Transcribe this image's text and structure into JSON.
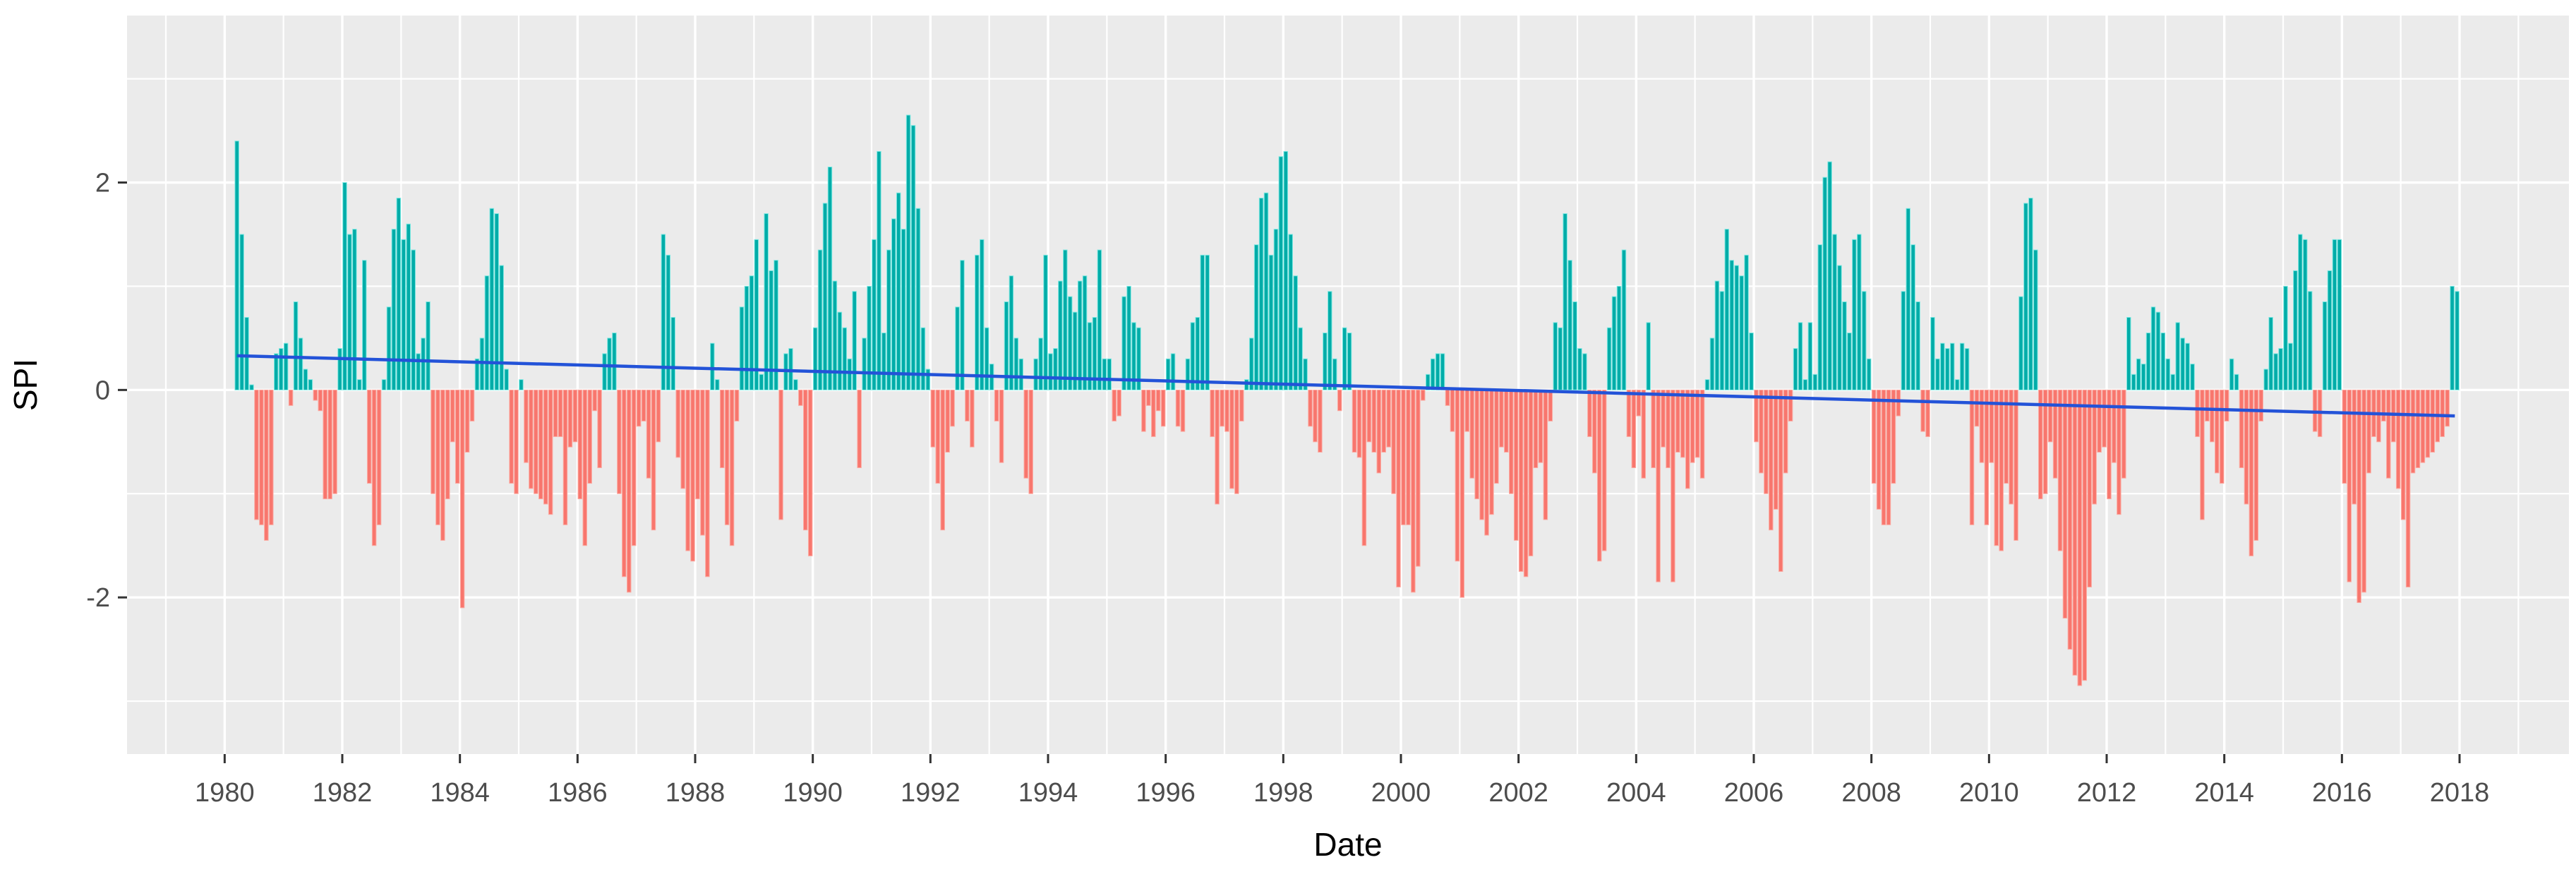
{
  "chart_data": {
    "type": "bar",
    "title": "",
    "xlabel": "Date",
    "ylabel": "SPI",
    "frequency": "monthly",
    "start_year": 1980,
    "end_year": 2017,
    "x_tick_labels": [
      "1980",
      "1982",
      "1984",
      "1986",
      "1988",
      "1990",
      "1992",
      "1994",
      "1996",
      "1998",
      "2000",
      "2002",
      "2004",
      "2006",
      "2008",
      "2010",
      "2012",
      "2014",
      "2016",
      "2018"
    ],
    "x_ticks": [
      1980,
      1982,
      1984,
      1986,
      1988,
      1990,
      1992,
      1994,
      1996,
      1998,
      2000,
      2002,
      2004,
      2006,
      2008,
      2010,
      2012,
      2014,
      2016,
      2018
    ],
    "y_ticks": [
      -2,
      0,
      2
    ],
    "y_minor_ticks": [
      -3,
      -1,
      1,
      3
    ],
    "x_minor_ticks": [
      1979,
      1981,
      1983,
      1985,
      1987,
      1989,
      1991,
      1993,
      1995,
      1997,
      1999,
      2001,
      2003,
      2005,
      2007,
      2009,
      2011,
      2013,
      2015,
      2017,
      2019
    ],
    "ylim": [
      -3.51,
      3.61
    ],
    "xlim": [
      1978.34,
      2019.86
    ],
    "grid": true,
    "legend": "none",
    "panel_bg": "#EBEBEB",
    "grid_color": "#FFFFFF",
    "axis_tick_color": "#333333",
    "tick_label_color": "#4D4D4D",
    "positive_color": "#00ACA8",
    "positive_edge_color": "#7EE8E2",
    "negative_color": "#F8766D",
    "negative_edge_color": "#FBADA5",
    "trend_line": {
      "type": "linear",
      "color": "#2353D8",
      "width": 4.5,
      "points": [
        [
          1980.21,
          0.33
        ],
        [
          2017.92,
          -0.25
        ]
      ]
    },
    "values_by_year": {
      "1980": [
        0,
        0,
        2.4,
        1.5,
        0.7,
        0.05,
        -1.25,
        -1.3,
        -1.45,
        -1.3,
        0.35,
        0.4
      ],
      "1981": [
        0.45,
        -0.15,
        0.85,
        0.5,
        0.2,
        0.1,
        -0.1,
        -0.2,
        -1.05,
        -1.05,
        -1.0,
        0.4
      ],
      "1982": [
        2.0,
        1.5,
        1.55,
        0.1,
        1.25,
        -0.9,
        -1.5,
        -1.3,
        0.1,
        0.8,
        1.55,
        1.85
      ],
      "1983": [
        1.45,
        1.6,
        1.35,
        0.35,
        0.5,
        0.85,
        -1.0,
        -1.3,
        -1.45,
        -1.05,
        -0.5,
        -0.9
      ],
      "1984": [
        -2.1,
        -0.6,
        -0.3,
        0.3,
        0.5,
        1.1,
        1.75,
        1.7,
        1.2,
        0.2,
        -0.9,
        -1.0
      ],
      "1985": [
        0.1,
        -0.7,
        -0.95,
        -1.0,
        -1.05,
        -1.1,
        -1.2,
        -0.45,
        -0.45,
        -1.3,
        -0.55,
        -0.5
      ],
      "1986": [
        -1.05,
        -1.5,
        -0.9,
        -0.2,
        -0.75,
        0.35,
        0.5,
        0.55,
        -1.0,
        -1.8,
        -1.95,
        -1.5
      ],
      "1987": [
        -0.35,
        -0.3,
        -0.85,
        -1.35,
        -0.5,
        1.5,
        1.3,
        0.7,
        -0.65,
        -0.95,
        -1.55,
        -1.65
      ],
      "1988": [
        -1.05,
        -1.4,
        -1.8,
        0.45,
        0.1,
        -0.75,
        -1.3,
        -1.5,
        -0.3,
        0.8,
        1.0,
        1.1
      ],
      "1989": [
        1.45,
        0.15,
        1.7,
        1.15,
        1.25,
        -1.25,
        0.35,
        0.4,
        0.1,
        -0.15,
        -1.35,
        -1.6
      ],
      "1990": [
        0.6,
        1.35,
        1.8,
        2.15,
        1.05,
        0.75,
        0.6,
        0.3,
        0.95,
        -0.75,
        0.5,
        1.0
      ],
      "1991": [
        1.45,
        2.3,
        0.55,
        1.35,
        1.65,
        1.9,
        1.55,
        2.65,
        2.55,
        1.75,
        0.6,
        0.2
      ],
      "1992": [
        -0.55,
        -0.9,
        -1.35,
        -0.6,
        -0.35,
        0.8,
        1.25,
        -0.3,
        -0.55,
        1.3,
        1.45,
        0.6
      ],
      "1993": [
        0.25,
        -0.3,
        -0.7,
        0.85,
        1.1,
        0.5,
        0.3,
        -0.85,
        -1.0,
        0.3,
        0.5,
        1.3
      ],
      "1994": [
        0.35,
        0.4,
        1.05,
        1.35,
        0.9,
        0.75,
        1.05,
        1.1,
        0.65,
        0.7,
        1.35,
        0.3
      ],
      "1995": [
        0.3,
        -0.3,
        -0.25,
        0.9,
        1.0,
        0.65,
        0.6,
        -0.4,
        -0.15,
        -0.45,
        -0.2,
        -0.35
      ],
      "1996": [
        0.3,
        0.35,
        -0.35,
        -0.4,
        0.3,
        0.65,
        0.7,
        1.3,
        1.3,
        -0.45,
        -1.1,
        -0.35
      ],
      "1997": [
        -0.4,
        -0.95,
        -1.0,
        -0.3,
        0.1,
        0.5,
        1.4,
        1.85,
        1.9,
        1.3,
        1.55,
        2.25
      ],
      "1998": [
        2.3,
        1.5,
        1.1,
        0.6,
        0.3,
        -0.35,
        -0.5,
        -0.6,
        0.55,
        0.95,
        0.3,
        -0.2
      ],
      "1999": [
        0.6,
        0.55,
        -0.6,
        -0.65,
        -1.5,
        -0.5,
        -0.6,
        -0.8,
        -0.6,
        -0.55,
        -1.0,
        -1.9
      ],
      "2000": [
        -1.3,
        -1.3,
        -1.95,
        -1.7,
        -0.1,
        0.15,
        0.3,
        0.35,
        0.35,
        -0.15,
        -0.4,
        -1.65
      ],
      "2001": [
        -2.0,
        -0.4,
        -0.85,
        -1.05,
        -1.25,
        -1.4,
        -1.2,
        -0.9,
        -0.55,
        -0.6,
        -1.0,
        -1.45
      ],
      "2002": [
        -1.75,
        -1.8,
        -1.6,
        -0.75,
        -0.7,
        -1.25,
        -0.3,
        0.65,
        0.6,
        1.7,
        1.25,
        0.85
      ],
      "2003": [
        0.4,
        0.35,
        -0.45,
        -0.8,
        -1.65,
        -1.55,
        0.6,
        0.9,
        1.0,
        1.35,
        -0.45,
        -0.75
      ],
      "2004": [
        -0.25,
        -0.85,
        0.65,
        -0.75,
        -1.85,
        -0.55,
        -0.75,
        -1.85,
        -0.6,
        -0.65,
        -0.95,
        -0.7
      ],
      "2005": [
        -0.65,
        -0.85,
        0.1,
        0.5,
        1.05,
        0.95,
        1.55,
        1.25,
        1.2,
        1.1,
        1.3,
        0.55
      ],
      "2006": [
        -0.5,
        -0.8,
        -1.0,
        -1.35,
        -1.15,
        -1.75,
        -0.8,
        -0.3,
        0.4,
        0.65,
        0.1,
        0.65
      ],
      "2007": [
        0.15,
        1.4,
        2.05,
        2.2,
        1.5,
        1.2,
        0.85,
        0.55,
        1.45,
        1.5,
        0.95,
        0.3
      ],
      "2008": [
        -0.9,
        -1.15,
        -1.3,
        -1.3,
        -0.9,
        -0.25,
        0.95,
        1.75,
        1.4,
        0.85,
        -0.4,
        -0.45
      ],
      "2009": [
        0.7,
        0.3,
        0.45,
        0.4,
        0.45,
        0.1,
        0.45,
        0.4,
        -1.3,
        -0.35,
        -0.7,
        -1.3
      ],
      "2010": [
        -0.7,
        -1.5,
        -1.55,
        -0.9,
        -1.1,
        -1.45,
        0.9,
        1.8,
        1.85,
        1.35,
        -1.05,
        -1.0
      ],
      "2011": [
        -0.5,
        -0.85,
        -1.55,
        -2.2,
        -2.5,
        -2.75,
        -2.85,
        -2.8,
        -1.9,
        -1.1,
        -0.6,
        -0.55
      ],
      "2012": [
        -1.05,
        -0.7,
        -1.2,
        -0.85,
        0.7,
        0.15,
        0.3,
        0.25,
        0.55,
        0.8,
        0.75,
        0.55
      ],
      "2013": [
        0.3,
        0.15,
        0.65,
        0.5,
        0.45,
        0.25,
        -0.45,
        -1.25,
        -0.3,
        -0.5,
        -0.8,
        -0.9
      ],
      "2014": [
        -0.3,
        0.3,
        0.15,
        -0.75,
        -1.1,
        -1.6,
        -1.45,
        -0.3,
        0.2,
        0.7,
        0.35,
        0.4
      ],
      "2015": [
        1.0,
        0.45,
        1.15,
        1.5,
        1.45,
        0.95,
        -0.4,
        -0.45,
        0.85,
        1.15,
        1.45,
        1.45
      ],
      "2016": [
        -0.9,
        -1.85,
        -1.1,
        -2.05,
        -1.95,
        -0.8,
        -0.45,
        -0.5,
        -0.3,
        -0.85,
        -0.5,
        -0.95
      ],
      "2017": [
        -1.25,
        -1.9,
        -0.8,
        -0.75,
        -0.7,
        -0.65,
        -0.6,
        -0.5,
        -0.45,
        -0.35,
        1.0,
        0.95
      ]
    }
  }
}
